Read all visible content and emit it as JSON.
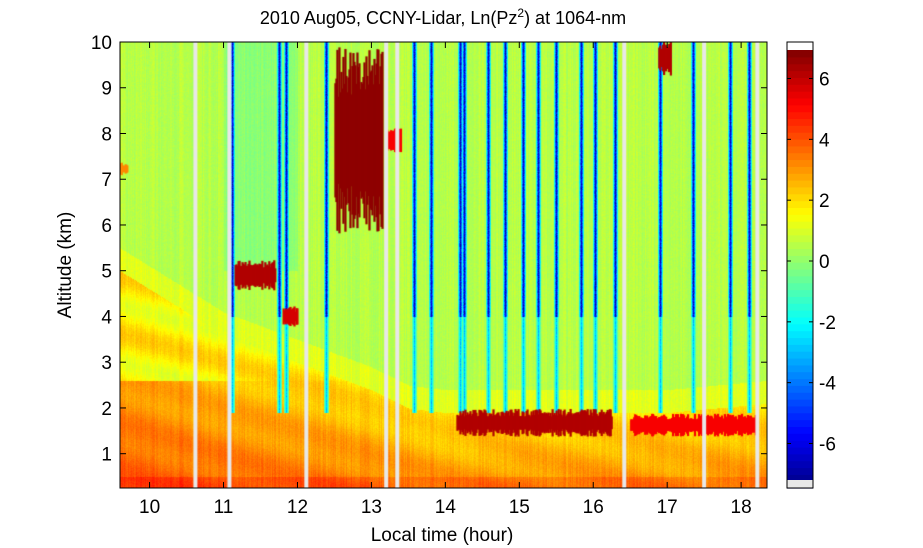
{
  "chart_data": {
    "type": "heatmap",
    "title_prefix": "2010 Aug05, CCNY-Lidar, Ln(Pz",
    "title_superscript": "2",
    "title_suffix": ") at 1064-nm",
    "xlabel": "Local time (hour)",
    "ylabel": "Altitude (km)",
    "xlim": [
      9.6,
      18.35
    ],
    "ylim": [
      0.25,
      10
    ],
    "xticks": [
      10,
      11,
      12,
      13,
      14,
      15,
      16,
      17,
      18
    ],
    "yticks": [
      1,
      2,
      3,
      4,
      5,
      6,
      7,
      8,
      9,
      10
    ],
    "colorbar": {
      "range": [
        -7.2,
        7.2
      ],
      "ticks": [
        -6,
        -4,
        -2,
        0,
        2,
        4,
        6
      ],
      "colormap": "jet"
    },
    "grid": false,
    "data_gaps_hours": [
      10.62,
      11.08,
      12.12,
      13.2,
      13.35,
      16.42,
      17.5,
      18.22
    ],
    "background_value_free_troposphere": 0.8,
    "boundary_layer": [
      {
        "t": 9.6,
        "top_km": 5.0,
        "near_surface_value": 4.3
      },
      {
        "t": 11.0,
        "top_km": 3.6,
        "near_surface_value": 4.2
      },
      {
        "t": 12.0,
        "top_km": 3.0,
        "near_surface_value": 4.0
      },
      {
        "t": 13.0,
        "top_km": 2.4,
        "near_surface_value": 4.0
      },
      {
        "t": 13.5,
        "top_km": 2.0,
        "near_surface_value": 3.8
      },
      {
        "t": 14.0,
        "top_km": 1.9,
        "near_surface_value": 3.6
      },
      {
        "t": 15.0,
        "top_km": 1.9,
        "near_surface_value": 3.6
      },
      {
        "t": 16.0,
        "top_km": 1.9,
        "near_surface_value": 3.6
      },
      {
        "t": 17.0,
        "top_km": 1.9,
        "near_surface_value": 3.6
      },
      {
        "t": 18.35,
        "top_km": 2.1,
        "near_surface_value": 3.6
      }
    ],
    "clouds": [
      {
        "t0": 12.5,
        "t1": 13.15,
        "z0": 6.0,
        "z1": 9.7,
        "value": 7
      },
      {
        "t0": 11.15,
        "t1": 11.7,
        "z0": 4.6,
        "z1": 5.2,
        "value": 6.5
      },
      {
        "t0": 11.8,
        "t1": 12.0,
        "z0": 3.8,
        "z1": 4.2,
        "value": 6
      },
      {
        "t0": 13.2,
        "t1": 13.4,
        "z0": 7.6,
        "z1": 8.1,
        "value": 5.5
      },
      {
        "t0": 16.88,
        "t1": 17.05,
        "z0": 9.3,
        "z1": 10.0,
        "value": 6.5
      },
      {
        "t0": 9.6,
        "t1": 9.7,
        "z0": 7.1,
        "z1": 7.35,
        "value": 3.5
      },
      {
        "t0": 14.15,
        "t1": 16.25,
        "z0": 1.4,
        "z1": 1.95,
        "value": 6.5
      },
      {
        "t0": 16.5,
        "t1": 18.2,
        "z0": 1.4,
        "z1": 1.85,
        "value": 5.5
      }
    ],
    "low_signal_streaks_hours": [
      11.12,
      11.75,
      11.85,
      12.38,
      13.58,
      13.8,
      14.2,
      14.25,
      14.58,
      14.8,
      15.05,
      15.25,
      15.5,
      15.83,
      16.02,
      16.3,
      16.9,
      17.35,
      17.85,
      18.1
    ]
  }
}
